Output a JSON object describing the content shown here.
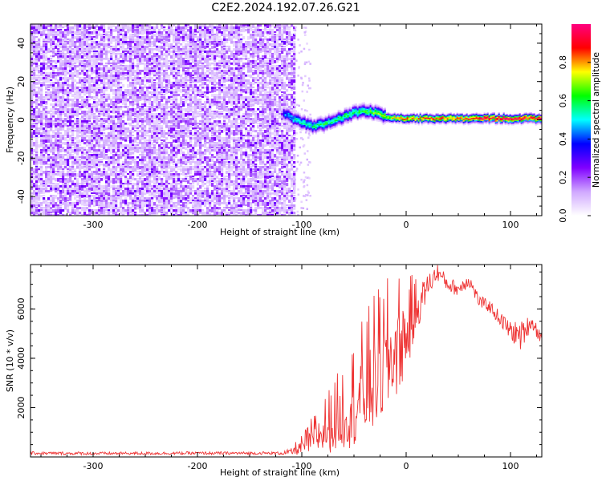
{
  "title": "C2E2.2024.192.07.26.G21",
  "chart_data": [
    {
      "type": "heatmap",
      "title": "C2E2.2024.192.07.26.G21",
      "xlabel": "Height of straight line (km)",
      "ylabel": "Frequency (Hz)",
      "xlim": [
        -360,
        130
      ],
      "ylim": [
        -50,
        50
      ],
      "xticks": [
        -300,
        -200,
        -100,
        0,
        100
      ],
      "yticks": [
        -40,
        -20,
        0,
        20,
        40
      ],
      "noise_region": {
        "x_from": -360,
        "x_to": -108,
        "note": "scattered low-amplitude noise"
      },
      "signal_track": {
        "x": [
          -118,
          -110,
          -100,
          -90,
          -80,
          -70,
          -60,
          -50,
          -40,
          -30,
          -20,
          -10,
          0,
          20,
          40,
          60,
          80,
          100,
          120,
          130
        ],
        "frequency": [
          4,
          1,
          -1,
          -3,
          -2,
          0,
          2,
          4,
          5,
          4,
          2,
          1,
          1,
          1,
          1,
          1,
          1,
          1,
          1,
          1
        ],
        "normalized_amplitude": [
          0.4,
          0.5,
          0.55,
          0.55,
          0.6,
          0.55,
          0.6,
          0.6,
          0.6,
          0.65,
          0.7,
          0.8,
          0.85,
          0.85,
          0.85,
          0.9,
          0.95,
          0.95,
          0.95,
          0.95
        ]
      },
      "colorbar": {
        "label": "Normalized spectral amplitude",
        "range": [
          0,
          1
        ],
        "ticks": [
          "0.0",
          "0.2",
          "0.4",
          "0.6",
          "0.8"
        ],
        "colors": [
          "#ffffff",
          "#d0a8ff",
          "#8000ff",
          "#0000ff",
          "#00ffff",
          "#00ff00",
          "#ffff00",
          "#ff0000",
          "#ff0080"
        ]
      }
    },
    {
      "type": "line",
      "xlabel": "Height of straight line (km)",
      "ylabel": "SNR (10 * v/v)",
      "xlim": [
        -360,
        130
      ],
      "ylim": [
        0,
        7800
      ],
      "xticks": [
        -300,
        -200,
        -100,
        0,
        100
      ],
      "yticks": [
        2000,
        4000,
        6000
      ],
      "color": "#ee3333",
      "series": [
        {
          "name": "SNR",
          "x": [
            -360,
            -300,
            -200,
            -120,
            -110,
            -100,
            -90,
            -80,
            -70,
            -60,
            -50,
            -40,
            -30,
            -20,
            -10,
            0,
            10,
            20,
            30,
            40,
            50,
            60,
            70,
            80,
            90,
            100,
            110,
            120,
            130
          ],
          "y": [
            150,
            140,
            150,
            150,
            200,
            400,
            700,
            1000,
            1300,
            1700,
            2100,
            2600,
            3200,
            3700,
            4300,
            4900,
            5900,
            6900,
            7500,
            7000,
            6800,
            7200,
            6300,
            6100,
            5600,
            5100,
            4900,
            5500,
            4800
          ],
          "spread": [
            60,
            60,
            60,
            60,
            150,
            300,
            600,
            900,
            1100,
            1400,
            1700,
            2000,
            2200,
            2200,
            2000,
            1600,
            900,
            500,
            350,
            300,
            300,
            300,
            250,
            250,
            300,
            400,
            600,
            300,
            300
          ]
        }
      ]
    }
  ]
}
